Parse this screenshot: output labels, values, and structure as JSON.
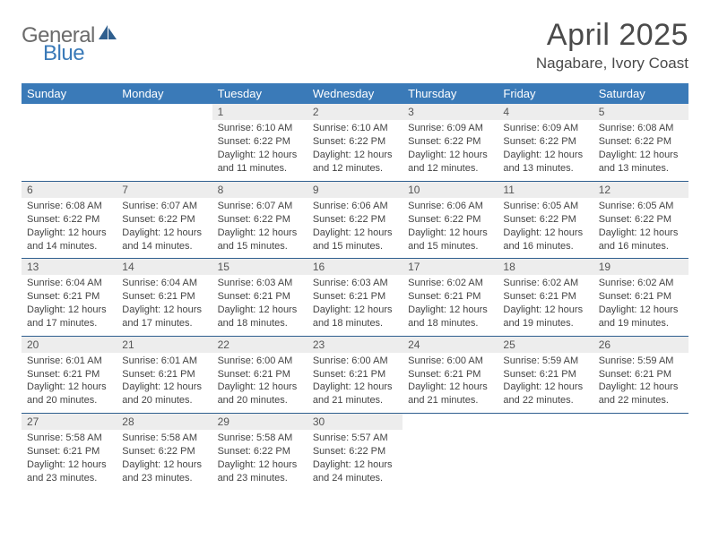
{
  "logo": {
    "text_a": "General",
    "text_b": "Blue",
    "color_a": "#6b6b6b",
    "color_b": "#3a7ab8",
    "sail_color": "#2f5f8f"
  },
  "header": {
    "title": "April 2025",
    "location": "Nagabare, Ivory Coast"
  },
  "colors": {
    "header_row_bg": "#3a7ab8",
    "header_row_text": "#ffffff",
    "day_row_bg": "#ededed",
    "day_row_border": "#2f5f8f",
    "body_text": "#444444",
    "title_text": "#4a4a4a"
  },
  "dayHeaders": [
    "Sunday",
    "Monday",
    "Tuesday",
    "Wednesday",
    "Thursday",
    "Friday",
    "Saturday"
  ],
  "weeks": [
    [
      {
        "n": "",
        "sunrise": "",
        "sunset": "",
        "daylight": ""
      },
      {
        "n": "",
        "sunrise": "",
        "sunset": "",
        "daylight": ""
      },
      {
        "n": "1",
        "sunrise": "6:10 AM",
        "sunset": "6:22 PM",
        "daylight": "12 hours and 11 minutes."
      },
      {
        "n": "2",
        "sunrise": "6:10 AM",
        "sunset": "6:22 PM",
        "daylight": "12 hours and 12 minutes."
      },
      {
        "n": "3",
        "sunrise": "6:09 AM",
        "sunset": "6:22 PM",
        "daylight": "12 hours and 12 minutes."
      },
      {
        "n": "4",
        "sunrise": "6:09 AM",
        "sunset": "6:22 PM",
        "daylight": "12 hours and 13 minutes."
      },
      {
        "n": "5",
        "sunrise": "6:08 AM",
        "sunset": "6:22 PM",
        "daylight": "12 hours and 13 minutes."
      }
    ],
    [
      {
        "n": "6",
        "sunrise": "6:08 AM",
        "sunset": "6:22 PM",
        "daylight": "12 hours and 14 minutes."
      },
      {
        "n": "7",
        "sunrise": "6:07 AM",
        "sunset": "6:22 PM",
        "daylight": "12 hours and 14 minutes."
      },
      {
        "n": "8",
        "sunrise": "6:07 AM",
        "sunset": "6:22 PM",
        "daylight": "12 hours and 15 minutes."
      },
      {
        "n": "9",
        "sunrise": "6:06 AM",
        "sunset": "6:22 PM",
        "daylight": "12 hours and 15 minutes."
      },
      {
        "n": "10",
        "sunrise": "6:06 AM",
        "sunset": "6:22 PM",
        "daylight": "12 hours and 15 minutes."
      },
      {
        "n": "11",
        "sunrise": "6:05 AM",
        "sunset": "6:22 PM",
        "daylight": "12 hours and 16 minutes."
      },
      {
        "n": "12",
        "sunrise": "6:05 AM",
        "sunset": "6:22 PM",
        "daylight": "12 hours and 16 minutes."
      }
    ],
    [
      {
        "n": "13",
        "sunrise": "6:04 AM",
        "sunset": "6:21 PM",
        "daylight": "12 hours and 17 minutes."
      },
      {
        "n": "14",
        "sunrise": "6:04 AM",
        "sunset": "6:21 PM",
        "daylight": "12 hours and 17 minutes."
      },
      {
        "n": "15",
        "sunrise": "6:03 AM",
        "sunset": "6:21 PM",
        "daylight": "12 hours and 18 minutes."
      },
      {
        "n": "16",
        "sunrise": "6:03 AM",
        "sunset": "6:21 PM",
        "daylight": "12 hours and 18 minutes."
      },
      {
        "n": "17",
        "sunrise": "6:02 AM",
        "sunset": "6:21 PM",
        "daylight": "12 hours and 18 minutes."
      },
      {
        "n": "18",
        "sunrise": "6:02 AM",
        "sunset": "6:21 PM",
        "daylight": "12 hours and 19 minutes."
      },
      {
        "n": "19",
        "sunrise": "6:02 AM",
        "sunset": "6:21 PM",
        "daylight": "12 hours and 19 minutes."
      }
    ],
    [
      {
        "n": "20",
        "sunrise": "6:01 AM",
        "sunset": "6:21 PM",
        "daylight": "12 hours and 20 minutes."
      },
      {
        "n": "21",
        "sunrise": "6:01 AM",
        "sunset": "6:21 PM",
        "daylight": "12 hours and 20 minutes."
      },
      {
        "n": "22",
        "sunrise": "6:00 AM",
        "sunset": "6:21 PM",
        "daylight": "12 hours and 20 minutes."
      },
      {
        "n": "23",
        "sunrise": "6:00 AM",
        "sunset": "6:21 PM",
        "daylight": "12 hours and 21 minutes."
      },
      {
        "n": "24",
        "sunrise": "6:00 AM",
        "sunset": "6:21 PM",
        "daylight": "12 hours and 21 minutes."
      },
      {
        "n": "25",
        "sunrise": "5:59 AM",
        "sunset": "6:21 PM",
        "daylight": "12 hours and 22 minutes."
      },
      {
        "n": "26",
        "sunrise": "5:59 AM",
        "sunset": "6:21 PM",
        "daylight": "12 hours and 22 minutes."
      }
    ],
    [
      {
        "n": "27",
        "sunrise": "5:58 AM",
        "sunset": "6:21 PM",
        "daylight": "12 hours and 23 minutes."
      },
      {
        "n": "28",
        "sunrise": "5:58 AM",
        "sunset": "6:22 PM",
        "daylight": "12 hours and 23 minutes."
      },
      {
        "n": "29",
        "sunrise": "5:58 AM",
        "sunset": "6:22 PM",
        "daylight": "12 hours and 23 minutes."
      },
      {
        "n": "30",
        "sunrise": "5:57 AM",
        "sunset": "6:22 PM",
        "daylight": "12 hours and 24 minutes."
      },
      {
        "n": "",
        "sunrise": "",
        "sunset": "",
        "daylight": ""
      },
      {
        "n": "",
        "sunrise": "",
        "sunset": "",
        "daylight": ""
      },
      {
        "n": "",
        "sunrise": "",
        "sunset": "",
        "daylight": ""
      }
    ]
  ],
  "labels": {
    "sunrise": "Sunrise: ",
    "sunset": "Sunset: ",
    "daylight": "Daylight: "
  }
}
